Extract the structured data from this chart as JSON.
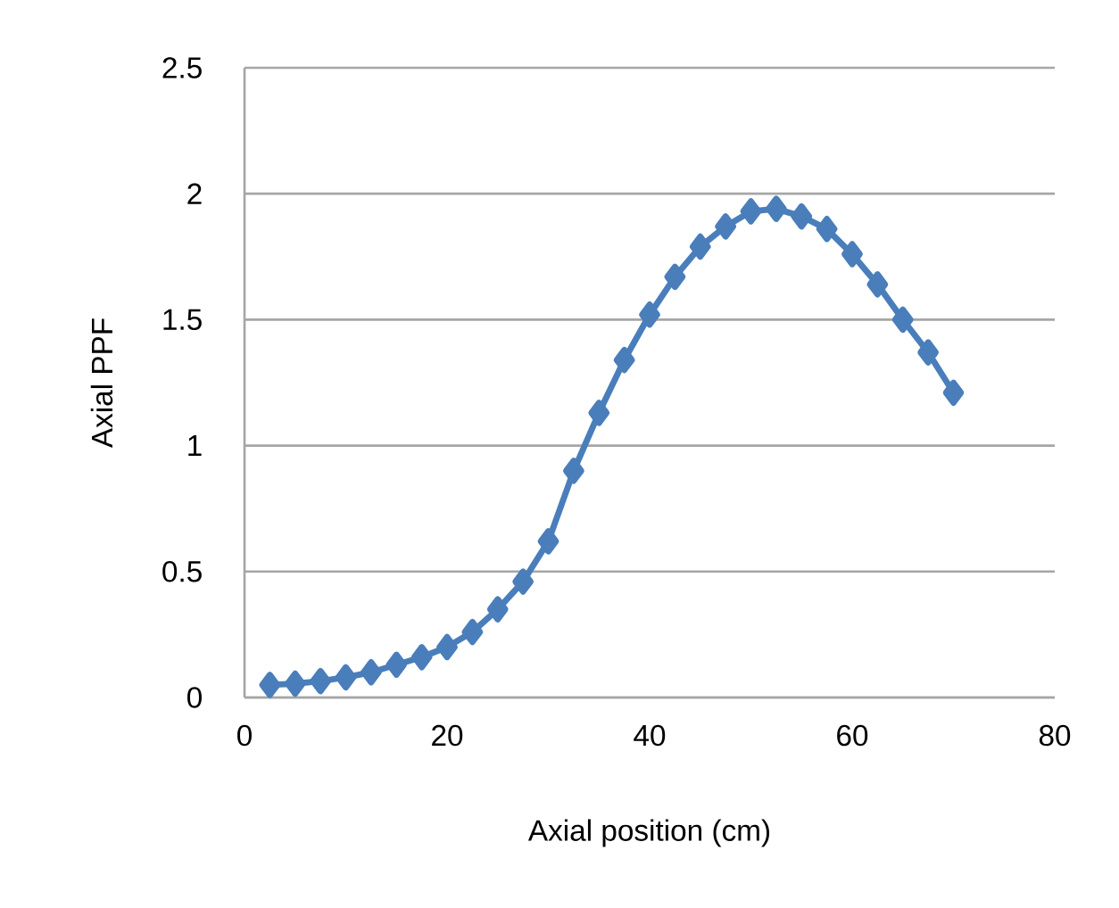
{
  "chart_data": {
    "type": "line",
    "xlabel": "Axial position (cm)",
    "ylabel": "Axial PPF",
    "x": [
      2.5,
      5,
      7.5,
      10,
      12.5,
      15,
      17.5,
      20,
      22.5,
      25,
      27.5,
      30,
      32.5,
      35,
      37.5,
      40,
      42.5,
      45,
      47.5,
      50,
      52.5,
      55,
      57.5,
      60,
      62.5,
      65,
      67.5,
      70
    ],
    "series": [
      {
        "color": "#4a7ebb",
        "values": [
          0.05,
          0.055,
          0.065,
          0.08,
          0.1,
          0.13,
          0.16,
          0.2,
          0.26,
          0.35,
          0.46,
          0.62,
          0.9,
          1.13,
          1.34,
          1.52,
          1.67,
          1.79,
          1.87,
          1.93,
          1.94,
          1.91,
          1.86,
          1.76,
          1.64,
          1.5,
          1.37,
          1.21
        ]
      }
    ],
    "xlim": [
      0,
      80
    ],
    "ylim": [
      0,
      2.5
    ],
    "xticks": [
      0,
      20,
      40,
      60,
      80
    ],
    "yticks": [
      0,
      0.5,
      1,
      1.5,
      2,
      2.5
    ],
    "grid": "y",
    "marker": "diamond",
    "line_style": "solid"
  }
}
